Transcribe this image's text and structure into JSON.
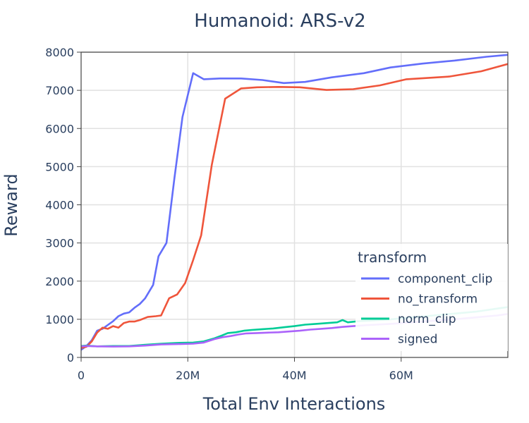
{
  "chart_data": {
    "type": "line",
    "title": "Humanoid: ARS-v2",
    "xlabel": "Total Env Interactions",
    "ylabel": "Reward",
    "xlim": [
      0,
      80000000
    ],
    "ylim": [
      0,
      8000
    ],
    "x_ticks": [
      {
        "value": 0,
        "label": "0"
      },
      {
        "value": 20000000,
        "label": "20M"
      },
      {
        "value": 40000000,
        "label": "40M"
      },
      {
        "value": 60000000,
        "label": "60M"
      }
    ],
    "y_ticks": [
      {
        "value": 0,
        "label": "0"
      },
      {
        "value": 1000,
        "label": "1000"
      },
      {
        "value": 2000,
        "label": "2000"
      },
      {
        "value": 3000,
        "label": "3000"
      },
      {
        "value": 4000,
        "label": "4000"
      },
      {
        "value": 5000,
        "label": "5000"
      },
      {
        "value": 6000,
        "label": "6000"
      },
      {
        "value": 7000,
        "label": "7000"
      },
      {
        "value": 8000,
        "label": "8000"
      }
    ],
    "grid": true,
    "legend": {
      "title": "transform",
      "position": "bottom-right"
    },
    "series": [
      {
        "name": "component_clip",
        "color": "#636efa",
        "x": [
          0,
          1000000,
          2000000,
          3000000,
          4000000,
          5000000,
          6000000,
          7000000,
          8000000,
          9000000,
          10000000,
          11000000,
          12000000,
          13500000,
          14500000,
          16000000,
          17500000,
          19000000,
          21000000,
          23000000,
          26000000,
          30000000,
          34000000,
          38000000,
          42000000,
          47000000,
          53000000,
          58000000,
          64000000,
          70000000,
          76000000,
          80000000
        ],
        "y": [
          200,
          300,
          450,
          700,
          750,
          850,
          950,
          1080,
          1150,
          1180,
          1300,
          1400,
          1550,
          1900,
          2650,
          3000,
          4700,
          6300,
          7450,
          7290,
          7310,
          7310,
          7270,
          7190,
          7220,
          7340,
          7450,
          7600,
          7700,
          7780,
          7880,
          7930
        ]
      },
      {
        "name": "no_transform",
        "color": "#ef553b",
        "x": [
          0,
          1000000,
          2000000,
          3000000,
          4000000,
          5000000,
          6000000,
          7000000,
          8000000,
          9000000,
          10000000,
          11000000,
          12500000,
          14000000,
          15000000,
          16500000,
          18000000,
          19500000,
          21000000,
          22500000,
          24500000,
          27000000,
          30000000,
          33000000,
          37000000,
          41000000,
          46000000,
          51000000,
          56000000,
          61000000,
          69000000,
          75000000,
          80000000
        ],
        "y": [
          250,
          280,
          420,
          650,
          780,
          750,
          820,
          780,
          900,
          940,
          940,
          980,
          1060,
          1080,
          1100,
          1550,
          1650,
          1950,
          2550,
          3200,
          5050,
          6780,
          7050,
          7080,
          7090,
          7080,
          7010,
          7030,
          7130,
          7290,
          7360,
          7500,
          7690
        ]
      },
      {
        "name": "norm_clip",
        "color": "#00cc96",
        "x": [
          0,
          1000000,
          3000000,
          6000000,
          9000000,
          12000000,
          15000000,
          18000000,
          21000000,
          23000000,
          25000000,
          26500000,
          27500000,
          29000000,
          30500000,
          32000000,
          34000000,
          36000000,
          38000000,
          40000000,
          42000000,
          44000000,
          46000000,
          48000000,
          49000000,
          50000000,
          52000000,
          54000000,
          56000000,
          58000000,
          62000000,
          66000000,
          70000000,
          74000000,
          78000000,
          80000000
        ],
        "y": [
          300,
          310,
          290,
          300,
          300,
          330,
          360,
          380,
          390,
          420,
          500,
          580,
          640,
          660,
          700,
          720,
          740,
          760,
          790,
          820,
          860,
          880,
          900,
          920,
          980,
          920,
          950,
          960,
          980,
          1000,
          1050,
          1100,
          1150,
          1200,
          1280,
          1320
        ]
      },
      {
        "name": "signed",
        "color": "#ab63fa",
        "x": [
          0,
          1000000,
          3000000,
          6000000,
          9000000,
          12000000,
          15000000,
          18000000,
          21000000,
          23000000,
          25000000,
          26500000,
          28000000,
          29500000,
          31000000,
          33000000,
          35000000,
          37000000,
          39000000,
          41000000,
          43000000,
          45000000,
          47000000,
          49000000,
          51000000,
          54000000,
          58000000,
          62000000,
          66000000,
          70000000,
          74000000,
          78000000,
          80000000
        ],
        "y": [
          290,
          300,
          290,
          285,
          290,
          310,
          340,
          350,
          360,
          390,
          480,
          530,
          560,
          600,
          630,
          640,
          650,
          660,
          680,
          700,
          730,
          750,
          770,
          800,
          820,
          850,
          880,
          920,
          960,
          1000,
          1050,
          1100,
          1140
        ]
      }
    ]
  }
}
